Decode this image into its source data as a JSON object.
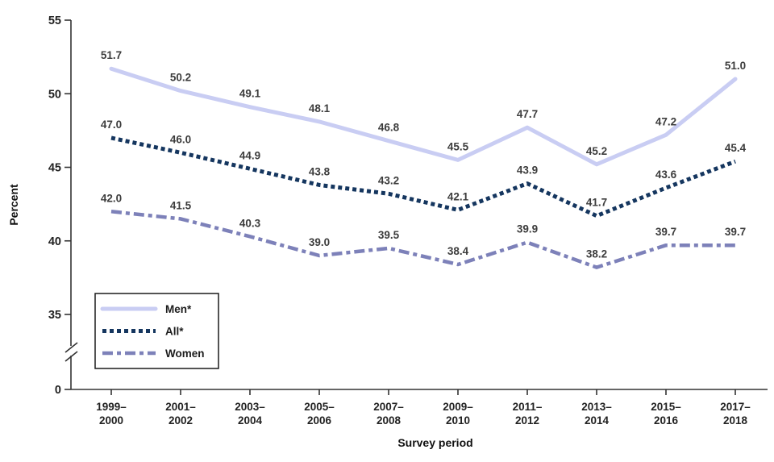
{
  "chart_data": {
    "type": "line",
    "title": "",
    "xlabel": "Survey period",
    "ylabel": "Percent",
    "categories": [
      "1999–2000",
      "2001–2002",
      "2003–2004",
      "2005–2006",
      "2007–2008",
      "2009–2010",
      "2011–2012",
      "2013–2014",
      "2015–2016",
      "2017–2018"
    ],
    "series": [
      {
        "name": "Men*",
        "style": "solid",
        "color": "#c9cdf3",
        "values": [
          51.7,
          50.2,
          49.1,
          48.1,
          46.8,
          45.5,
          47.7,
          45.2,
          47.2,
          51.0
        ]
      },
      {
        "name": "All*",
        "style": "dotted",
        "color": "#15365f",
        "values": [
          47.0,
          46.0,
          44.9,
          43.8,
          43.2,
          42.1,
          43.9,
          41.7,
          43.6,
          45.4
        ]
      },
      {
        "name": "Women",
        "style": "dash-dot",
        "color": "#7d81b9",
        "values": [
          42.0,
          41.5,
          40.3,
          39.0,
          39.5,
          38.4,
          39.9,
          38.2,
          39.7,
          39.7
        ]
      }
    ],
    "yticks": [
      0,
      35,
      40,
      45,
      50,
      55
    ],
    "ylim": [
      0,
      55
    ],
    "axis_break": true,
    "grid": false,
    "legend_position": "lower-left",
    "data_labels": true,
    "label_color": "#3c3c3c",
    "axis_color": "#333333",
    "tick_label_color": "#222222"
  }
}
